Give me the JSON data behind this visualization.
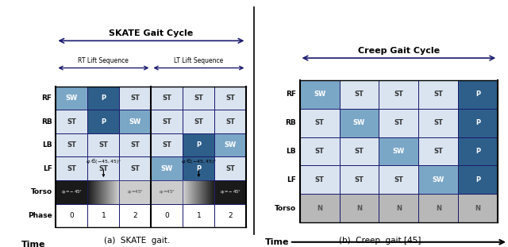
{
  "fig_width": 6.4,
  "fig_height": 3.11,
  "color_ST": "#d9e4f0",
  "color_SW": "#7ba7c7",
  "color_P": "#2e5f8a",
  "color_N": "#b8b8b8",
  "color_border": "#1a1a6e",
  "color_bg": "#ffffff",
  "skate_title": "SKATE Gait Cycle",
  "creep_title": "Creep Gait Cycle",
  "caption_a": "(a)  SKATE  gait.",
  "caption_b": "(b)  Creep  gait [45].",
  "time_label": "Time",
  "rt_lift_label": "RT Lift Sequence",
  "lt_lift_label": "LT Lift Sequence",
  "skate_data": {
    "RF": [
      "SW",
      "P",
      "ST",
      "ST",
      "ST",
      "ST"
    ],
    "RB": [
      "ST",
      "P",
      "SW",
      "ST",
      "ST",
      "ST"
    ],
    "LB": [
      "ST",
      "ST",
      "ST",
      "ST",
      "P",
      "SW"
    ],
    "LF": [
      "ST",
      "ST",
      "ST",
      "SW",
      "P",
      "ST"
    ]
  },
  "creep_data": {
    "RF": [
      "SW",
      "ST",
      "ST",
      "ST",
      "P"
    ],
    "RB": [
      "ST",
      "SW",
      "ST",
      "ST",
      "P"
    ],
    "LB": [
      "ST",
      "ST",
      "SW",
      "ST",
      "P"
    ],
    "LF": [
      "ST",
      "ST",
      "ST",
      "SW",
      "P"
    ]
  },
  "phase_labels": [
    "0",
    "1",
    "2",
    "0",
    "1",
    "2"
  ]
}
